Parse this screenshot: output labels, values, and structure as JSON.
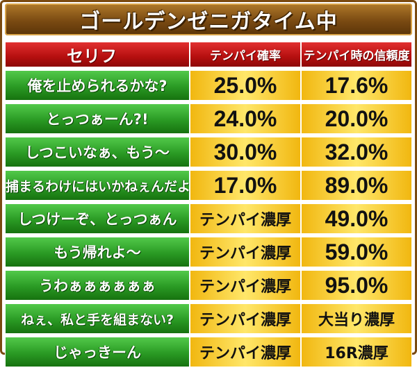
{
  "title": "ゴールデンゼニガタイム中",
  "headers": {
    "line": "セリフ",
    "tenpai": "テンパイ確率",
    "trust": "テンパイ時の信頼度"
  },
  "rows": [
    {
      "line": "俺を止められるかな?",
      "tenpai": "25.0%",
      "trust": "17.6%"
    },
    {
      "line": "とっつぁーん?!",
      "tenpai": "24.0%",
      "trust": "20.0%"
    },
    {
      "line": "しつこいなぁ、もう〜",
      "tenpai": "30.0%",
      "trust": "32.0%"
    },
    {
      "line": "捕まるわけにはいかねぇんだよ",
      "tenpai": "17.0%",
      "trust": "89.0%"
    },
    {
      "line": "しつけーぞ、とっつぁん",
      "tenpai": "テンパイ濃厚",
      "trust": "49.0%"
    },
    {
      "line": "もう帰れよ〜",
      "tenpai": "テンパイ濃厚",
      "trust": "59.0%"
    },
    {
      "line": "うわぁぁぁぁぁぁ",
      "tenpai": "テンパイ濃厚",
      "trust": "95.0%"
    },
    {
      "line": "ねぇ、私と手を組まない?",
      "tenpai": "テンパイ濃厚",
      "trust": "大当り濃厚"
    },
    {
      "line": "じゃっきーん",
      "tenpai": "テンパイ濃厚",
      "trust": "16R濃厚"
    }
  ],
  "colors": {
    "header_red": "#b50f0f",
    "row_green": "#2a9a24",
    "value_gold": "#f1b710",
    "highlight_red": "#e40d0d",
    "title_brown": "#7a4a12"
  }
}
